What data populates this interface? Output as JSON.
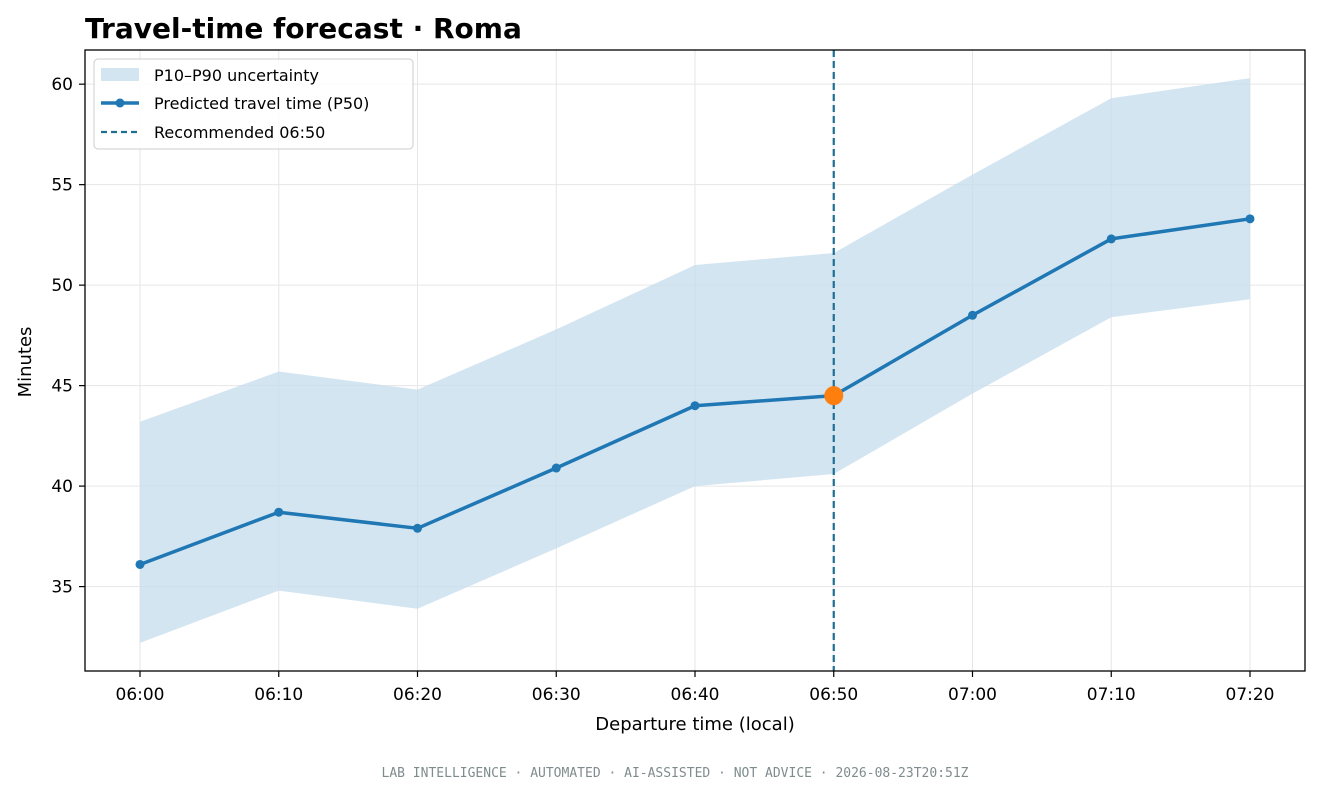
{
  "chart_data": {
    "type": "line",
    "title": "Travel-time forecast · Roma",
    "xlabel": "Departure time (local)",
    "ylabel": "Minutes",
    "x": [
      "06:00",
      "06:10",
      "06:20",
      "06:30",
      "06:40",
      "06:50",
      "07:00",
      "07:10",
      "07:20"
    ],
    "series": [
      {
        "name": "Predicted travel time (P50)",
        "values": [
          36.1,
          38.7,
          37.9,
          40.9,
          44.0,
          44.5,
          48.5,
          52.3,
          53.3
        ],
        "color": "#1f77b4"
      }
    ],
    "band": {
      "name": "P10–P90 uncertainty",
      "lower": [
        32.2,
        34.8,
        33.9,
        36.9,
        40.0,
        40.6,
        44.6,
        48.4,
        49.3
      ],
      "upper": [
        43.2,
        45.7,
        44.8,
        47.8,
        51.0,
        51.6,
        55.5,
        59.3,
        60.3
      ],
      "color": "#c6dcee"
    },
    "recommended": {
      "x": "06:50",
      "value": 44.5,
      "label": "Recommended 06:50",
      "line_color": "#1f6f93",
      "marker_color": "#ff7f0e"
    },
    "yticks": [
      35,
      40,
      45,
      50,
      55,
      60
    ],
    "ylim": [
      30.8,
      61.7
    ],
    "grid": true,
    "legend_position": "top-left"
  },
  "footer": "LAB INTELLIGENCE · AUTOMATED · AI-ASSISTED · NOT ADVICE · 2026-08-23T20:51Z"
}
